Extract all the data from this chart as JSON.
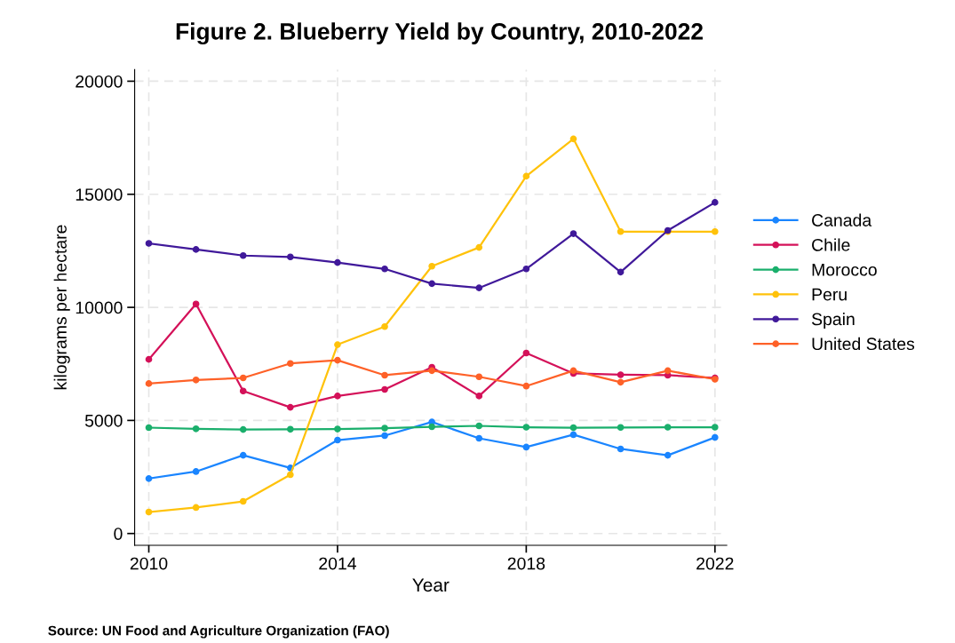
{
  "chart_data": {
    "type": "line",
    "title": "Figure 2. Blueberry Yield by Country, 2010-2022",
    "xlabel": "Year",
    "ylabel": "kilograms per hectare",
    "annotations": [
      "Source: UN Food and Agriculture Organization (FAO)"
    ],
    "x": [
      2010,
      2011,
      2012,
      2013,
      2014,
      2015,
      2016,
      2017,
      2018,
      2019,
      2020,
      2021,
      2022
    ],
    "series": [
      {
        "name": "Canada",
        "color": "#1a85ff",
        "values": [
          2430,
          2740,
          3460,
          2900,
          4130,
          4330,
          4930,
          4210,
          3820,
          4370,
          3740,
          3460,
          4250
        ]
      },
      {
        "name": "Chile",
        "color": "#d41159",
        "values": [
          7700,
          10150,
          6300,
          5580,
          6080,
          6370,
          7350,
          6080,
          7980,
          7080,
          7020,
          7000,
          6880
        ]
      },
      {
        "name": "Morocco",
        "color": "#1aaf6c",
        "values": [
          4680,
          4630,
          4600,
          4610,
          4620,
          4660,
          4720,
          4760,
          4700,
          4680,
          4690,
          4700,
          4700
        ]
      },
      {
        "name": "Peru",
        "color": "#ffc20a",
        "values": [
          950,
          1150,
          1420,
          2600,
          8350,
          9150,
          11820,
          12650,
          15800,
          17450,
          13350,
          13350,
          13350
        ]
      },
      {
        "name": "Spain",
        "color": "#40199a",
        "values": [
          12830,
          12560,
          12290,
          12230,
          11980,
          11700,
          11050,
          10860,
          11700,
          13260,
          11560,
          13400,
          14640
        ]
      },
      {
        "name": "United States",
        "color": "#fe6128",
        "values": [
          6630,
          6790,
          6880,
          7520,
          7660,
          7000,
          7200,
          6930,
          6520,
          7200,
          6690,
          7200,
          6820
        ]
      }
    ],
    "xlim": [
      2009.7,
      2022.25
    ],
    "ylim": [
      -520,
      20520
    ],
    "xticks": [
      2010,
      2014,
      2018,
      2022
    ],
    "yticks": [
      0,
      5000,
      10000,
      15000,
      20000
    ],
    "grid": true,
    "legend": "right",
    "marker": "circle",
    "line_style": "solid"
  }
}
